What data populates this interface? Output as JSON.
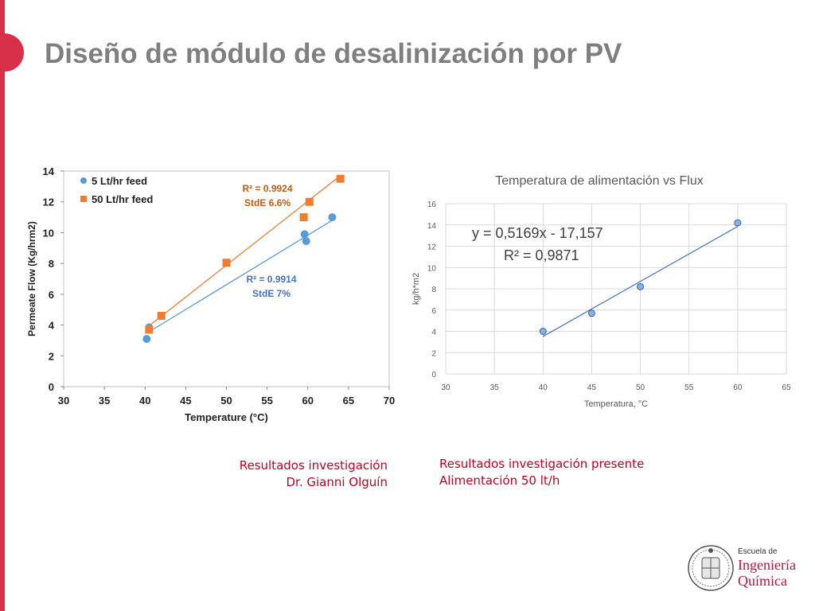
{
  "slide": {
    "title": "Diseño de módulo de desalinización por PV",
    "accent_color": "#d9304a"
  },
  "captions": {
    "left": [
      "Resultados investigación",
      "Dr. Gianni Olguín"
    ],
    "right": [
      "Resultados investigación presente",
      "Alimentación 50 lt/h"
    ],
    "color": "#c00020"
  },
  "logo": {
    "line1": "Escuela de",
    "line2": "Ingeniería",
    "line3": "Química",
    "brand_color": "#c0143c"
  },
  "chart_data": [
    {
      "type": "scatter",
      "title": "",
      "xlabel": "Temperature (°C)",
      "ylabel": "Permeate Flow (Kg/hrm2)",
      "xlim": [
        30,
        70
      ],
      "ylim": [
        0,
        14
      ],
      "xticks": [
        30,
        35,
        40,
        45,
        50,
        55,
        60,
        65,
        70
      ],
      "yticks": [
        0,
        2,
        4,
        6,
        8,
        10,
        12,
        14
      ],
      "grid": false,
      "legend_position": "top-left",
      "series": [
        {
          "name": "5 Lt/hr feed",
          "color": "#5b9bd5",
          "marker": "circle",
          "x": [
            40.2,
            40.5,
            59.6,
            59.8,
            63.0
          ],
          "y": [
            3.1,
            3.85,
            9.9,
            9.45,
            11.0
          ],
          "trendline": {
            "x": [
              40.3,
              63.0
            ],
            "y": [
              3.5,
              10.8
            ]
          },
          "annotation": [
            "R² = 0.9914",
            "StdE 7%"
          ]
        },
        {
          "name": "50 Lt/hr feed",
          "color": "#ed7d31",
          "marker": "square",
          "x": [
            40.5,
            42.0,
            50.0,
            59.5,
            60.2,
            64.0
          ],
          "y": [
            3.7,
            4.6,
            8.05,
            11.0,
            12.0,
            13.5
          ],
          "trendline": {
            "x": [
              40.5,
              64.0
            ],
            "y": [
              3.95,
              13.7
            ]
          },
          "annotation": [
            "R² = 0.9924",
            "StdE 6.6%"
          ]
        }
      ]
    },
    {
      "type": "scatter",
      "title": "Temperatura de alimentación  vs Flux",
      "xlabel": "Temperatura, °C",
      "ylabel": "kg/h*m2",
      "xlim": [
        30,
        65
      ],
      "ylim": [
        0,
        16
      ],
      "xticks": [
        30,
        35,
        40,
        45,
        50,
        55,
        60,
        65
      ],
      "yticks": [
        0,
        2,
        4,
        6,
        8,
        10,
        12,
        14,
        16
      ],
      "grid": true,
      "equation": "y = 0,5169x - 17,157",
      "r2": "R² = 0,9871",
      "series": [
        {
          "name": "",
          "color": "#5b9bd5",
          "marker": "circle",
          "x": [
            40,
            45,
            50,
            60
          ],
          "y": [
            4.0,
            5.7,
            8.2,
            14.2
          ],
          "trendline": {
            "x": [
              40,
              60
            ],
            "y": [
              3.52,
              13.86
            ]
          }
        }
      ]
    }
  ]
}
